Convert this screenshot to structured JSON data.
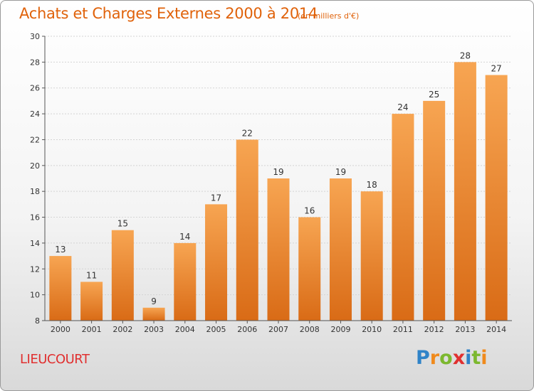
{
  "header": {
    "title": "Achats et Charges Externes 2000 à 2014",
    "unit": "(en milliers d'€)"
  },
  "footer": {
    "city": "LIEUCOURT",
    "logo": {
      "letters": [
        "P",
        "r",
        "o",
        "x",
        "i",
        "t",
        "i"
      ],
      "colors": [
        "#2f83c8",
        "#f08a1c",
        "#7cb82f",
        "#e03030",
        "#2f83c8",
        "#7cb82f",
        "#f08a1c"
      ]
    }
  },
  "colors": {
    "bar_light": "#f7a552",
    "bar_dark": "#d96b16",
    "accent": "#e0620a",
    "axis": "#555555",
    "grid": "#d4d4d4"
  },
  "chart_data": {
    "type": "bar",
    "categories": [
      "2000",
      "2001",
      "2002",
      "2003",
      "2004",
      "2005",
      "2006",
      "2007",
      "2008",
      "2009",
      "2010",
      "2011",
      "2012",
      "2013",
      "2014"
    ],
    "values": [
      13,
      11,
      15,
      9,
      14,
      17,
      22,
      19,
      16,
      19,
      18,
      24,
      25,
      28,
      27
    ],
    "yticks": [
      8,
      10,
      12,
      14,
      16,
      18,
      20,
      22,
      24,
      26,
      28,
      30
    ],
    "ylim": [
      8,
      30
    ],
    "grid": true,
    "title": "Achats et Charges Externes 2000 à 2014",
    "xlabel": "",
    "ylabel": ""
  }
}
